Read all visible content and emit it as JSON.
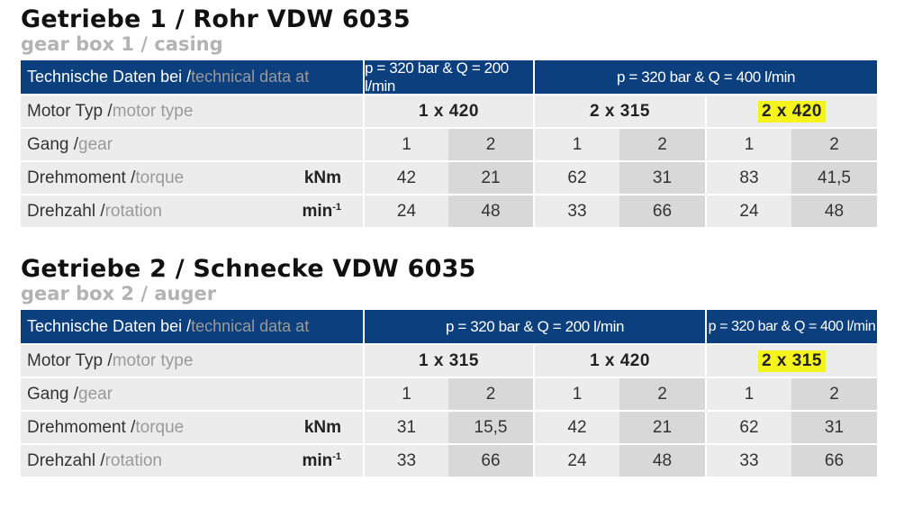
{
  "section1": {
    "title": "Getriebe 1 / Rohr VDW 6035",
    "subtitle": "gear box 1 / casing",
    "header_label_de": "Technische Daten bei / ",
    "header_label_en": "technical data at",
    "cond_a": "p = 320 bar & Q = 200 l/min",
    "cond_b": "p = 320 bar & Q = 400 l/min",
    "motor_label_de": "Motor Typ / ",
    "motor_label_en": "motor type",
    "motors": [
      "1 x 420",
      "2 x 315",
      "2 x 420"
    ],
    "gear_label_de": "Gang / ",
    "gear_label_en": "gear",
    "gears": [
      "1",
      "2",
      "1",
      "2",
      "1",
      "2"
    ],
    "torque_label_de": "Drehmoment / ",
    "torque_label_en": "torque",
    "torque_unit": "kNm",
    "torque": [
      "42",
      "21",
      "62",
      "31",
      "83",
      "41,5"
    ],
    "rotation_label_de": "Drehzahl / ",
    "rotation_label_en": "rotation",
    "rotation_unit_base": "min",
    "rotation_unit_exp": "-1",
    "rotation": [
      "24",
      "48",
      "33",
      "66",
      "24",
      "48"
    ]
  },
  "section2": {
    "title": "Getriebe 2 / Schnecke VDW 6035",
    "subtitle": "gear box 2 / auger",
    "header_label_de": "Technische Daten bei / ",
    "header_label_en": "technical data at",
    "cond_a": "p = 320 bar & Q = 200 l/min",
    "cond_b": "p = 320 bar & Q = 400 l/min",
    "motor_label_de": "Motor Typ / ",
    "motor_label_en": "motor type",
    "motors": [
      "1 x 315",
      "1 x 420",
      "2 x 315"
    ],
    "gear_label_de": "Gang / ",
    "gear_label_en": "gear",
    "gears": [
      "1",
      "2",
      "1",
      "2",
      "1",
      "2"
    ],
    "torque_label_de": "Drehmoment / ",
    "torque_label_en": "torque",
    "torque_unit": "kNm",
    "torque": [
      "31",
      "15,5",
      "42",
      "21",
      "62",
      "31"
    ],
    "rotation_label_de": "Drehzahl / ",
    "rotation_label_en": "rotation",
    "rotation_unit_base": "min",
    "rotation_unit_exp": "-1",
    "rotation": [
      "33",
      "66",
      "24",
      "48",
      "33",
      "66"
    ]
  },
  "highlight_color": "#f4f31e",
  "header_color": "#0b3f7d"
}
